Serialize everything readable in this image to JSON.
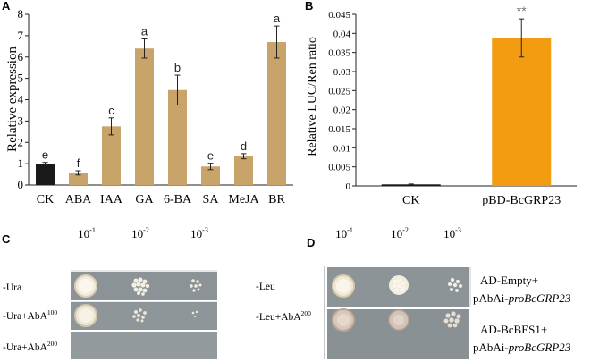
{
  "chart_data": [
    {
      "panel": "A",
      "type": "bar",
      "ylabel": "Relative expression",
      "xlabel": "",
      "ylim": [
        0,
        8
      ],
      "yticks": [
        "0",
        "1",
        "2",
        "3",
        "4",
        "5",
        "6",
        "7",
        "8"
      ],
      "categories": [
        "CK",
        "ABA",
        "IAA",
        "GA",
        "6-BA",
        "SA",
        "MeJA",
        "BR"
      ],
      "values": [
        1.0,
        0.57,
        2.75,
        6.4,
        4.45,
        0.87,
        1.35,
        6.7
      ],
      "errors": [
        0.06,
        0.1,
        0.4,
        0.45,
        0.7,
        0.15,
        0.12,
        0.75
      ],
      "sig_letters": [
        "e",
        "f",
        "c",
        "a",
        "b",
        "e",
        "d",
        "a"
      ],
      "colors": [
        "#1a1a1a",
        "#c9a46a",
        "#c9a46a",
        "#c9a46a",
        "#c9a46a",
        "#c9a46a",
        "#c9a46a",
        "#c9a46a"
      ]
    },
    {
      "panel": "B",
      "type": "bar",
      "ylabel": "Relative LUC/Ren ratio",
      "xlabel": "",
      "ylim": [
        0,
        0.045
      ],
      "yticks": [
        "0",
        "0.005",
        "0.01",
        "0.015",
        "0.02",
        "0.025",
        "0.03",
        "0.035",
        "0.04",
        "0.045"
      ],
      "categories": [
        "CK",
        "pBD-BcGRP23"
      ],
      "values": [
        0.0004,
        0.0388
      ],
      "errors": [
        0.0001,
        0.005
      ],
      "significance": [
        "",
        "**"
      ],
      "colors": [
        "#1a1a1a",
        "#f39c12"
      ]
    }
  ],
  "panel_c": {
    "label": "C",
    "dilutions": [
      {
        "base": "10",
        "exp": "-1"
      },
      {
        "base": "10",
        "exp": "-2"
      },
      {
        "base": "10",
        "exp": "-3"
      }
    ],
    "rows": [
      {
        "text": "-Ura",
        "sup": ""
      },
      {
        "text": "-Ura+AbA",
        "sup": "100"
      },
      {
        "text": "-Ura+AbA",
        "sup": "200"
      }
    ]
  },
  "panel_d": {
    "label": "D",
    "dilutions": [
      {
        "base": "10",
        "exp": "-1"
      },
      {
        "base": "10",
        "exp": "-2"
      },
      {
        "base": "10",
        "exp": "-3"
      }
    ],
    "rows": [
      {
        "text": "-Leu",
        "sup": ""
      },
      {
        "text": "-Leu+AbA",
        "sup": "200"
      }
    ],
    "constructs": [
      {
        "line1": "AD-Empty+",
        "line2_prefix": "pAbAi-",
        "line2_italic": "proBcGRP23"
      },
      {
        "line1": "AD-BcBES1+",
        "line2_prefix": "pAbAi-",
        "line2_italic": "proBcGRP23"
      }
    ]
  },
  "panel_labels": {
    "a": "A",
    "b": "B"
  },
  "colors": {
    "axis": "#222222",
    "plate_bg": "#8f969a",
    "colony": "#f1ebdd"
  }
}
